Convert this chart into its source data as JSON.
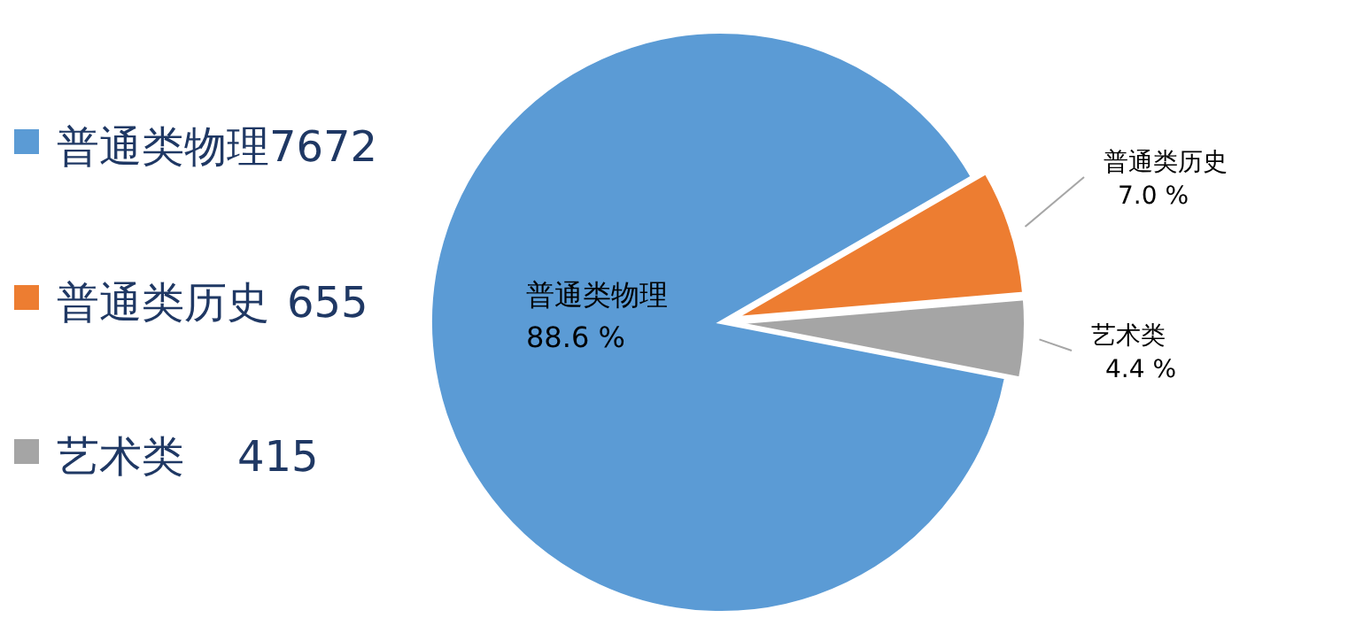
{
  "chart_data": {
    "type": "pie",
    "categories": [
      "普通类物理",
      "普通类历史",
      "艺术类"
    ],
    "values": [
      88.6,
      7.0,
      4.4
    ],
    "colors": [
      "#5b9bd5",
      "#ed7d31",
      "#a5a5a5"
    ],
    "value_labels": [
      "88.6 %",
      "7.0 %",
      "4.4 %"
    ],
    "annotations": [
      "7672",
      "655",
      "415"
    ],
    "legend": "left"
  }
}
